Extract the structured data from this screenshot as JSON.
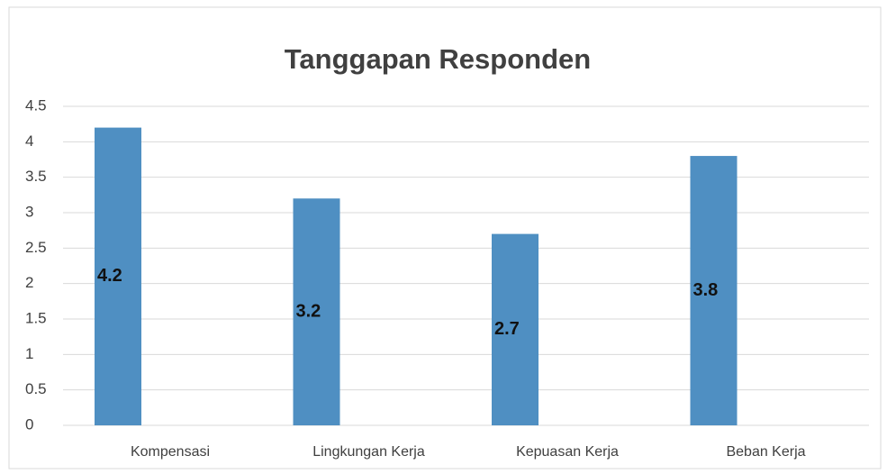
{
  "chart_data": {
    "type": "bar",
    "title": "Tanggapan Responden",
    "categories": [
      "Kompensasi",
      "Lingkungan Kerja",
      "Kepuasan Kerja",
      "Beban Kerja"
    ],
    "values": [
      4.2,
      3.2,
      2.7,
      3.8
    ],
    "color": "#4f8fc2",
    "ylim": [
      0,
      4.5
    ],
    "yticks": [
      0,
      0.5,
      1,
      1.5,
      2,
      2.5,
      3,
      3.5,
      4,
      4.5
    ],
    "grid": true
  }
}
